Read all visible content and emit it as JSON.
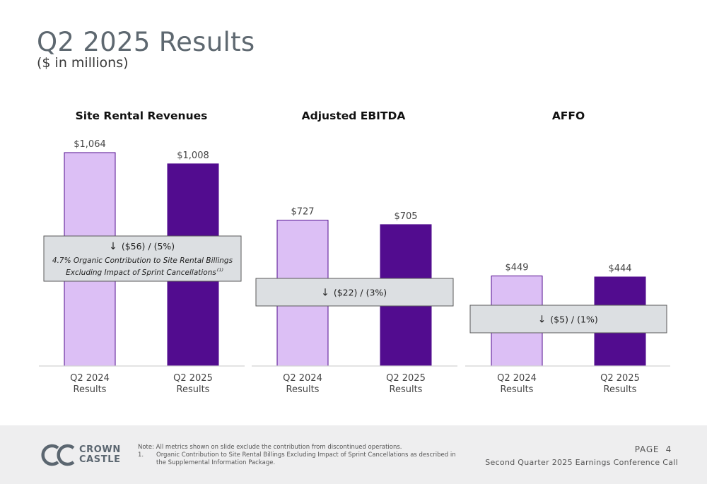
{
  "header": {
    "title": "Q2 2025 Results",
    "subtitle": "($ in millions)"
  },
  "colors": {
    "q2_2024_fill": "#dcbff5",
    "q2_2025_fill": "#520c8f",
    "bar_outline": "#520c8f",
    "callout_bg": "#dcdfe2",
    "callout_border": "#5a5a5a"
  },
  "chart_data": [
    {
      "type": "bar",
      "title": "Site Rental Revenues",
      "categories": [
        "Q2 2024 Results",
        "Q2 2025 Results"
      ],
      "category_lines": [
        [
          "Q2 2024",
          "Results"
        ],
        [
          "Q2 2025",
          "Results"
        ]
      ],
      "values": [
        1064,
        1008
      ],
      "data_labels": [
        "$1,064",
        "$1,008"
      ],
      "callout": {
        "change": "($56) / (5%)",
        "note_line1": "4.7% Organic Contribution to Site Rental Billings",
        "note_line2": "Excluding Impact of Sprint Cancellations",
        "note_superscript": "(1)"
      }
    },
    {
      "type": "bar",
      "title": "Adjusted EBITDA",
      "categories": [
        "Q2 2024 Results",
        "Q2 2025 Results"
      ],
      "category_lines": [
        [
          "Q2 2024",
          "Results"
        ],
        [
          "Q2 2025",
          "Results"
        ]
      ],
      "values": [
        727,
        705
      ],
      "data_labels": [
        "$727",
        "$705"
      ],
      "callout": {
        "change": "($22) / (3%)"
      }
    },
    {
      "type": "bar",
      "title": "AFFO",
      "categories": [
        "Q2 2024 Results",
        "Q2 2025 Results"
      ],
      "category_lines": [
        [
          "Q2 2024",
          "Results"
        ],
        [
          "Q2 2025",
          "Results"
        ]
      ],
      "values": [
        449,
        444
      ],
      "data_labels": [
        "$449",
        "$444"
      ],
      "callout": {
        "change": "($5) / (1%)"
      }
    }
  ],
  "footer": {
    "logo_line1": "CROWN",
    "logo_line2": "CASTLE",
    "note": "Note: All metrics shown on slide exclude the contribution from discontinued operations.",
    "footnote_num": "1.",
    "footnote_text": "Organic Contribution to Site Rental Billings Excluding Impact of Sprint Cancellations as described in the Supplemental Information Package.",
    "page_label": "PAGE",
    "page_number": "4",
    "conference": "Second Quarter 2025 Earnings Conference Call"
  }
}
